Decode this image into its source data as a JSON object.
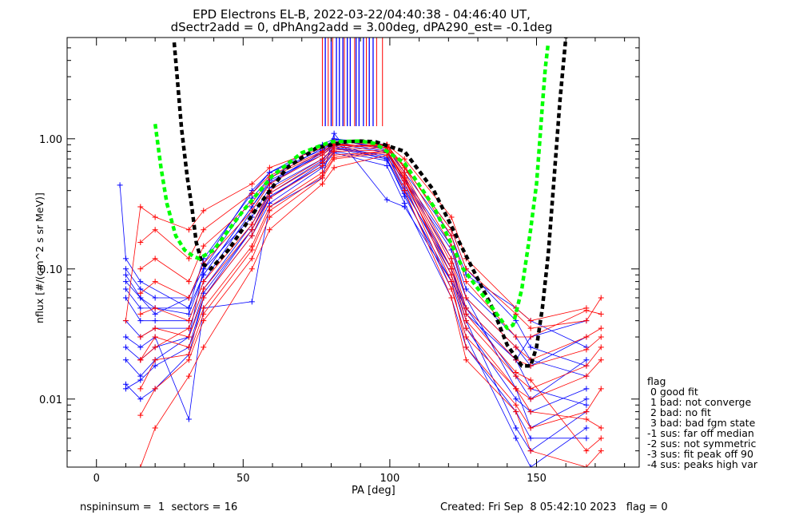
{
  "title_line1": "EPD Electrons EL-B, 2022-03-22/04:40:38 - 04:46:40 UT,",
  "title_line2": "dSectr2add = 0, dPhAng2add = 3.00deg, dPA290_est=  -0.1deg",
  "legend": {
    "title": "flag",
    "items": [
      " 0 good fit",
      " 1 bad: not converge",
      " 2 bad: no fit",
      " 3 bad: bad fgm state",
      "-1 sus: far off median",
      "-2 sus: not symmetric",
      "-3 sus: fit peak off 90",
      "-4 sus: peaks high var"
    ]
  },
  "footer": {
    "left": "nspininsum =  1  sectors = 16",
    "right": "Created: Fri Sep  8 05:42:10 2023   flag = 0"
  },
  "colors": {
    "red": "#ff0000",
    "blue": "#0000ff",
    "green": "#00ff00",
    "black": "#000000"
  },
  "chart_data": {
    "type": "line",
    "xlabel": "PA [deg]",
    "ylabel": "nflux [#/(cm^2 s sr MeV)]",
    "xlim": [
      -10,
      185
    ],
    "ylim": [
      0.003,
      6.0
    ],
    "y_scale": "log",
    "x_ticks": [
      0,
      50,
      100,
      150
    ],
    "y_ticks": [
      {
        "value": 0.01,
        "label": "0.01"
      },
      {
        "value": 0.1,
        "label": "0.10"
      },
      {
        "value": 1.0,
        "label": "1.00"
      }
    ],
    "vertical_markers": {
      "red_x": [
        77.0,
        79.0,
        80.5,
        84.5,
        88.0,
        92.0,
        95.5,
        97.5
      ],
      "blue_x": [
        78.0,
        80.0,
        81.8,
        82.8,
        84.0,
        85.5,
        86.5,
        88.5,
        89.5,
        91.0,
        93.0,
        94.3
      ]
    },
    "fits": [
      {
        "color": "black",
        "x": [
          26.5,
          27.5,
          29.0,
          31.0,
          32.5,
          34.0,
          36.0,
          39.0,
          45.0,
          55.0,
          65.0,
          75.0,
          85.0,
          90.0,
          95.0,
          105.0,
          115.0,
          125.0,
          135.0,
          140.0,
          145.0,
          148.0,
          150.0,
          152.0,
          154.0,
          156.0,
          158.0,
          160.0
        ],
        "y": [
          5.5,
          3.0,
          1.2,
          0.5,
          0.3,
          0.16,
          0.11,
          0.1,
          0.14,
          0.3,
          0.6,
          0.85,
          0.95,
          0.96,
          0.95,
          0.8,
          0.4,
          0.14,
          0.05,
          0.026,
          0.018,
          0.018,
          0.025,
          0.05,
          0.13,
          0.5,
          2.0,
          6.0
        ]
      },
      {
        "color": "green",
        "x": [
          20.0,
          22.0,
          24.0,
          27.0,
          30.0,
          33.0,
          35.0,
          40.0,
          50.0,
          60.0,
          70.0,
          80.0,
          90.0,
          95.0,
          105.0,
          115.0,
          125.0,
          135.0,
          140.0,
          142.0,
          145.0,
          148.0,
          150.0,
          151.0,
          152.0,
          153.0,
          154.0
        ],
        "y": [
          1.3,
          0.6,
          0.32,
          0.18,
          0.14,
          0.125,
          0.12,
          0.14,
          0.28,
          0.52,
          0.78,
          0.95,
          0.96,
          0.92,
          0.65,
          0.3,
          0.1,
          0.05,
          0.035,
          0.037,
          0.07,
          0.2,
          0.45,
          0.9,
          1.8,
          3.5,
          5.5
        ]
      }
    ],
    "series": [
      {
        "name": "",
        "color": "blue",
        "x": [
          10,
          15,
          20,
          31.5,
          36.5,
          53,
          59,
          77,
          81,
          99,
          105,
          121,
          126,
          143,
          148,
          167
        ],
        "y": [
          0.09,
          0.06,
          0.05,
          0.05,
          0.09,
          0.3,
          0.48,
          0.75,
          0.9,
          0.72,
          0.48,
          0.12,
          0.06,
          0.012,
          0.006,
          0.01
        ]
      },
      {
        "name": "",
        "color": "blue",
        "x": [
          10,
          15,
          20,
          31.5,
          36.5,
          53,
          59,
          77,
          81,
          99,
          105,
          121,
          126,
          143,
          148,
          167
        ],
        "y": [
          0.02,
          0.015,
          0.02,
          0.03,
          0.1,
          0.25,
          0.42,
          0.7,
          0.85,
          0.75,
          0.42,
          0.09,
          0.04,
          0.006,
          0.004,
          0.008
        ]
      },
      {
        "name": "",
        "color": "blue",
        "x": [
          8,
          10,
          15,
          31.5,
          36.5,
          53,
          59,
          77,
          81,
          99,
          105,
          121,
          126,
          143,
          148,
          167
        ],
        "y": [
          0.44,
          0.12,
          0.08,
          0.05,
          0.12,
          0.38,
          0.55,
          0.82,
          0.95,
          0.8,
          0.5,
          0.15,
          0.07,
          0.03,
          0.02,
          0.015
        ]
      },
      {
        "name": "",
        "color": "blue",
        "x": [
          10,
          15,
          20,
          31.5,
          36.5,
          53,
          59,
          77,
          81,
          99,
          105,
          121,
          126,
          143,
          148,
          167
        ],
        "y": [
          0.013,
          0.01,
          0.012,
          0.022,
          0.06,
          0.2,
          0.36,
          0.62,
          0.8,
          0.68,
          0.38,
          0.07,
          0.03,
          0.005,
          0.003,
          0.006
        ]
      },
      {
        "name": "",
        "color": "blue",
        "x": [
          10,
          15,
          20,
          31.5,
          36.5,
          53,
          59,
          77,
          81,
          99,
          105,
          121,
          126,
          143,
          148,
          167
        ],
        "y": [
          0.06,
          0.04,
          0.04,
          0.04,
          0.08,
          0.28,
          0.45,
          0.78,
          0.92,
          0.78,
          0.45,
          0.1,
          0.045,
          0.02,
          0.03,
          0.04
        ]
      },
      {
        "name": "",
        "color": "blue",
        "x": [
          10,
          15,
          20,
          31.5,
          36.5,
          53,
          59,
          77,
          81,
          99,
          105,
          121,
          126,
          143,
          148,
          167
        ],
        "y": [
          0.03,
          0.025,
          0.03,
          0.007,
          0.05,
          0.056,
          0.3,
          0.5,
          1.1,
          0.34,
          0.3,
          0.08,
          0.05,
          0.015,
          0.01,
          0.02
        ]
      },
      {
        "name": "",
        "color": "blue",
        "x": [
          10,
          15,
          20,
          31.5,
          36.5,
          53,
          59,
          77,
          81,
          99,
          105,
          121,
          126,
          143,
          148,
          167
        ],
        "y": [
          0.1,
          0.07,
          0.06,
          0.06,
          0.1,
          0.35,
          0.5,
          0.85,
          0.98,
          0.85,
          0.55,
          0.18,
          0.09,
          0.05,
          0.04,
          0.025
        ]
      },
      {
        "name": "",
        "color": "blue",
        "x": [
          10,
          15,
          20,
          31.5,
          36.5,
          53,
          59,
          77,
          81,
          99,
          105,
          121,
          126,
          143,
          148,
          167
        ],
        "y": [
          0.04,
          0.03,
          0.035,
          0.035,
          0.07,
          0.22,
          0.38,
          0.68,
          0.88,
          0.7,
          0.36,
          0.08,
          0.035,
          0.01,
          0.008,
          0.012
        ]
      },
      {
        "name": "",
        "color": "blue",
        "x": [
          10,
          15,
          20,
          31.5,
          36.5,
          53,
          59,
          77,
          81,
          99,
          105,
          121,
          126,
          143,
          148,
          167
        ],
        "y": [
          0.012,
          0.014,
          0.018,
          0.025,
          0.06,
          0.18,
          0.32,
          0.6,
          0.78,
          0.62,
          0.32,
          0.06,
          0.025,
          0.008,
          0.005,
          0.005
        ]
      },
      {
        "name": "",
        "color": "blue",
        "x": [
          10,
          15,
          20,
          31.5,
          36.5,
          53,
          59,
          77,
          81,
          99,
          105,
          121,
          126,
          143,
          148,
          167
        ],
        "y": [
          0.07,
          0.05,
          0.05,
          0.045,
          0.09,
          0.3,
          0.46,
          0.8,
          1.0,
          0.82,
          0.48,
          0.14,
          0.06,
          0.025,
          0.018,
          0.03
        ]
      },
      {
        "name": "",
        "color": "blue",
        "x": [
          10,
          15,
          20,
          31.5,
          36.5,
          53,
          59,
          77,
          81,
          99,
          105,
          121,
          126,
          143,
          148,
          167
        ],
        "y": [
          0.025,
          0.02,
          0.025,
          0.03,
          0.065,
          0.2,
          0.35,
          0.65,
          0.85,
          0.7,
          0.4,
          0.1,
          0.05,
          0.02,
          0.012,
          0.009
        ]
      },
      {
        "name": "",
        "color": "blue",
        "x": [
          10,
          15,
          20,
          31.5,
          36.5,
          53,
          59,
          77,
          81,
          99,
          105,
          121,
          126,
          143,
          148,
          167
        ],
        "y": [
          0.08,
          0.06,
          0.045,
          0.06,
          0.11,
          0.4,
          0.55,
          0.9,
          1.0,
          0.9,
          0.6,
          0.2,
          0.1,
          0.04,
          0.025,
          0.018
        ]
      },
      {
        "name": "",
        "color": "red",
        "x": [
          10,
          15,
          20,
          31.5,
          36.5,
          53,
          59,
          77,
          81,
          99,
          105,
          121,
          126,
          143,
          148,
          167
        ],
        "y": [
          0.04,
          0.3,
          0.25,
          0.2,
          0.28,
          0.45,
          0.6,
          0.85,
          0.95,
          0.9,
          0.7,
          0.25,
          0.12,
          0.05,
          0.04,
          0.05
        ]
      },
      {
        "name": "",
        "color": "red",
        "x": [
          15,
          20,
          31.5,
          36.5,
          53,
          59,
          77,
          81,
          99,
          105,
          121,
          126,
          143,
          148,
          167,
          172
        ],
        "y": [
          0.16,
          0.2,
          0.12,
          0.2,
          0.38,
          0.52,
          0.8,
          0.92,
          0.85,
          0.6,
          0.2,
          0.1,
          0.045,
          0.035,
          0.04,
          0.06
        ]
      },
      {
        "name": "",
        "color": "red",
        "x": [
          15,
          20,
          31.5,
          36.5,
          53,
          59,
          77,
          81,
          99,
          105,
          121,
          126,
          143,
          148,
          167,
          172
        ],
        "y": [
          0.003,
          0.006,
          0.015,
          0.025,
          0.1,
          0.2,
          0.45,
          0.6,
          0.75,
          0.4,
          0.06,
          0.02,
          0.008,
          0.004,
          0.003,
          0.004
        ]
      },
      {
        "name": "",
        "color": "red",
        "x": [
          15,
          20,
          31.5,
          36.5,
          53,
          59,
          77,
          81,
          99,
          105,
          121,
          126,
          143,
          148,
          167,
          172
        ],
        "y": [
          0.02,
          0.03,
          0.025,
          0.05,
          0.15,
          0.3,
          0.55,
          0.75,
          0.8,
          0.45,
          0.07,
          0.03,
          0.012,
          0.01,
          0.015,
          0.02
        ]
      },
      {
        "name": "",
        "color": "red",
        "x": [
          15,
          20,
          31.5,
          36.5,
          53,
          59,
          77,
          81,
          99,
          105,
          121,
          126,
          143,
          148,
          167,
          172
        ],
        "y": [
          0.045,
          0.05,
          0.04,
          0.08,
          0.22,
          0.4,
          0.7,
          0.85,
          0.9,
          0.55,
          0.12,
          0.05,
          0.02,
          0.018,
          0.024,
          0.03
        ]
      },
      {
        "name": "",
        "color": "red",
        "x": [
          15,
          20,
          31.5,
          36.5,
          53,
          59,
          77,
          81,
          99,
          105,
          121,
          126,
          143,
          148,
          167,
          172
        ],
        "y": [
          0.0075,
          0.012,
          0.02,
          0.04,
          0.12,
          0.25,
          0.5,
          0.7,
          0.78,
          0.5,
          0.08,
          0.025,
          0.009,
          0.006,
          0.008,
          0.012
        ]
      },
      {
        "name": "",
        "color": "red",
        "x": [
          15,
          20,
          31.5,
          36.5,
          53,
          59,
          77,
          81,
          99,
          105,
          121,
          126,
          143,
          148,
          167,
          172
        ],
        "y": [
          0.1,
          0.12,
          0.08,
          0.15,
          0.32,
          0.5,
          0.78,
          0.9,
          0.88,
          0.62,
          0.18,
          0.08,
          0.03,
          0.03,
          0.048,
          0.045
        ]
      },
      {
        "name": "",
        "color": "red",
        "x": [
          15,
          20,
          31.5,
          36.5,
          53,
          59,
          77,
          81,
          99,
          105,
          121,
          126,
          143,
          148,
          167,
          172
        ],
        "y": [
          0.03,
          0.035,
          0.03,
          0.06,
          0.18,
          0.35,
          0.62,
          0.8,
          0.82,
          0.5,
          0.1,
          0.04,
          0.015,
          0.012,
          0.018,
          0.025
        ]
      },
      {
        "name": "",
        "color": "red",
        "x": [
          15,
          20,
          31.5,
          36.5,
          53,
          59,
          77,
          81,
          99,
          105,
          121,
          126,
          143,
          148,
          167,
          172
        ],
        "y": [
          0.012,
          0.02,
          0.022,
          0.045,
          0.14,
          0.28,
          0.52,
          0.72,
          0.8,
          0.48,
          0.09,
          0.035,
          0.012,
          0.008,
          0.007,
          0.006
        ]
      },
      {
        "name": "",
        "color": "red",
        "x": [
          15,
          20,
          31.5,
          36.5,
          53,
          59,
          77,
          81,
          99,
          105,
          121,
          126,
          143,
          148,
          167,
          172
        ],
        "y": [
          0.065,
          0.08,
          0.06,
          0.11,
          0.28,
          0.45,
          0.75,
          0.88,
          0.9,
          0.6,
          0.15,
          0.06,
          0.025,
          0.02,
          0.03,
          0.035
        ]
      },
      {
        "name": "",
        "color": "red",
        "x": [
          15,
          20,
          31.5,
          36.5,
          53,
          59,
          77,
          81,
          99,
          105,
          121,
          126,
          143,
          148,
          167,
          172
        ],
        "y": [
          0.02,
          0.025,
          0.035,
          0.07,
          0.2,
          0.38,
          0.66,
          0.82,
          0.86,
          0.52,
          0.11,
          0.045,
          0.016,
          0.014,
          0.004,
          0.005
        ]
      }
    ]
  }
}
